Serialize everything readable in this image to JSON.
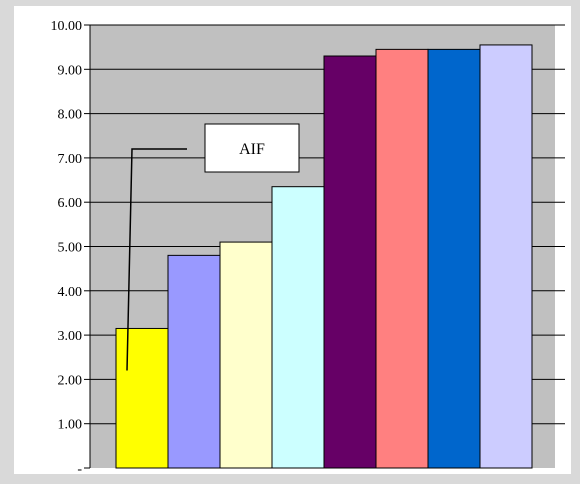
{
  "chart_data": {
    "type": "bar",
    "title": "",
    "xlabel": "",
    "ylabel": "",
    "categories": [
      "",
      "",
      "",
      "",
      "",
      "",
      "",
      ""
    ],
    "values": [
      3.15,
      4.8,
      5.1,
      6.35,
      9.3,
      9.45,
      9.45,
      9.55
    ],
    "ylim": [
      0,
      10
    ],
    "yticks": [
      0,
      1,
      2,
      3,
      4,
      5,
      6,
      7,
      8,
      9,
      10
    ],
    "ytick_labels": [
      "-",
      "1.00",
      "2.00",
      "3.00",
      "4.00",
      "5.00",
      "6.00",
      "7.00",
      "8.00",
      "9.00",
      "10.00"
    ],
    "bar_colors": [
      "#ffff00",
      "#9999ff",
      "#ffffcc",
      "#ccffff",
      "#660066",
      "#ff8080",
      "#0066cc",
      "#ccccff"
    ],
    "plot_background": "#c0c0c0",
    "outer_background": "#ffffff",
    "page_background": "#d9d9d9",
    "grid": true,
    "legend": "none",
    "annotations": [
      {
        "text": "AIF",
        "target_bar": 0
      }
    ]
  }
}
